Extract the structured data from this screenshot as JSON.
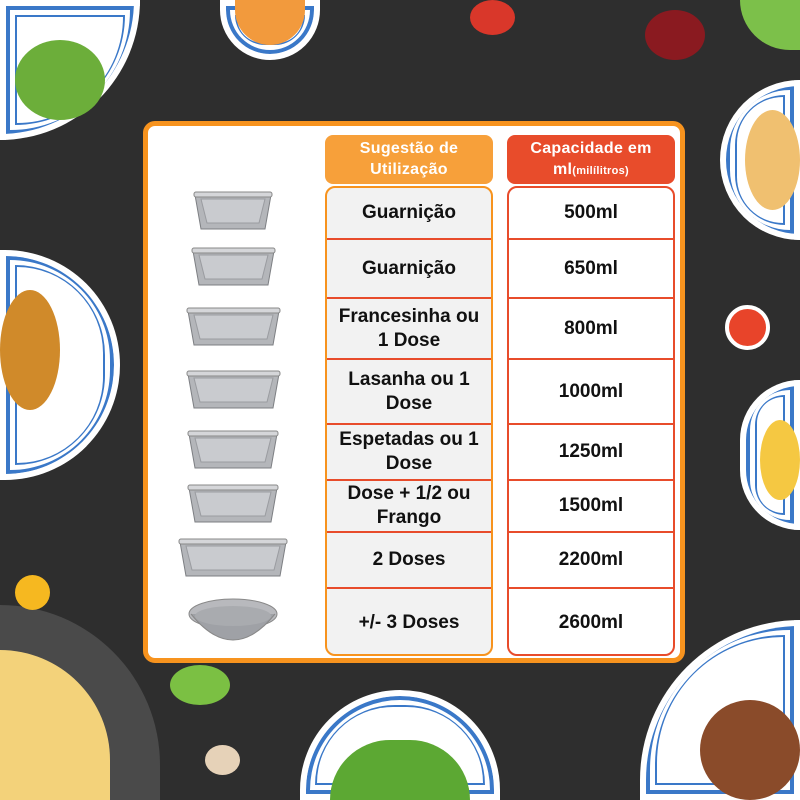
{
  "header": {
    "suggestion": "Sugestão de Utilização",
    "capacity": "Capacidade em ml",
    "capacity_unit": "(milílitros)"
  },
  "rows": [
    {
      "suggestion": "Guarnição",
      "capacity": "500ml"
    },
    {
      "suggestion": "Guarnição",
      "capacity": "650ml"
    },
    {
      "suggestion": "Francesinha ou 1 Dose",
      "capacity": "800ml"
    },
    {
      "suggestion": "Lasanha ou 1 Dose",
      "capacity": "1000ml"
    },
    {
      "suggestion": "Espetadas ou 1 Dose",
      "capacity": "1250ml"
    },
    {
      "suggestion": "Dose + 1/2 ou Frango",
      "capacity": "1500ml"
    },
    {
      "suggestion": "2 Doses",
      "capacity": "2200ml"
    },
    {
      "suggestion": "+/- 3 Doses",
      "capacity": "2600ml"
    }
  ],
  "colors": {
    "border": "#f7931e",
    "suggestion_header": "#f7a03a",
    "capacity_header": "#e84c2b",
    "background": "#2e2e2e"
  }
}
